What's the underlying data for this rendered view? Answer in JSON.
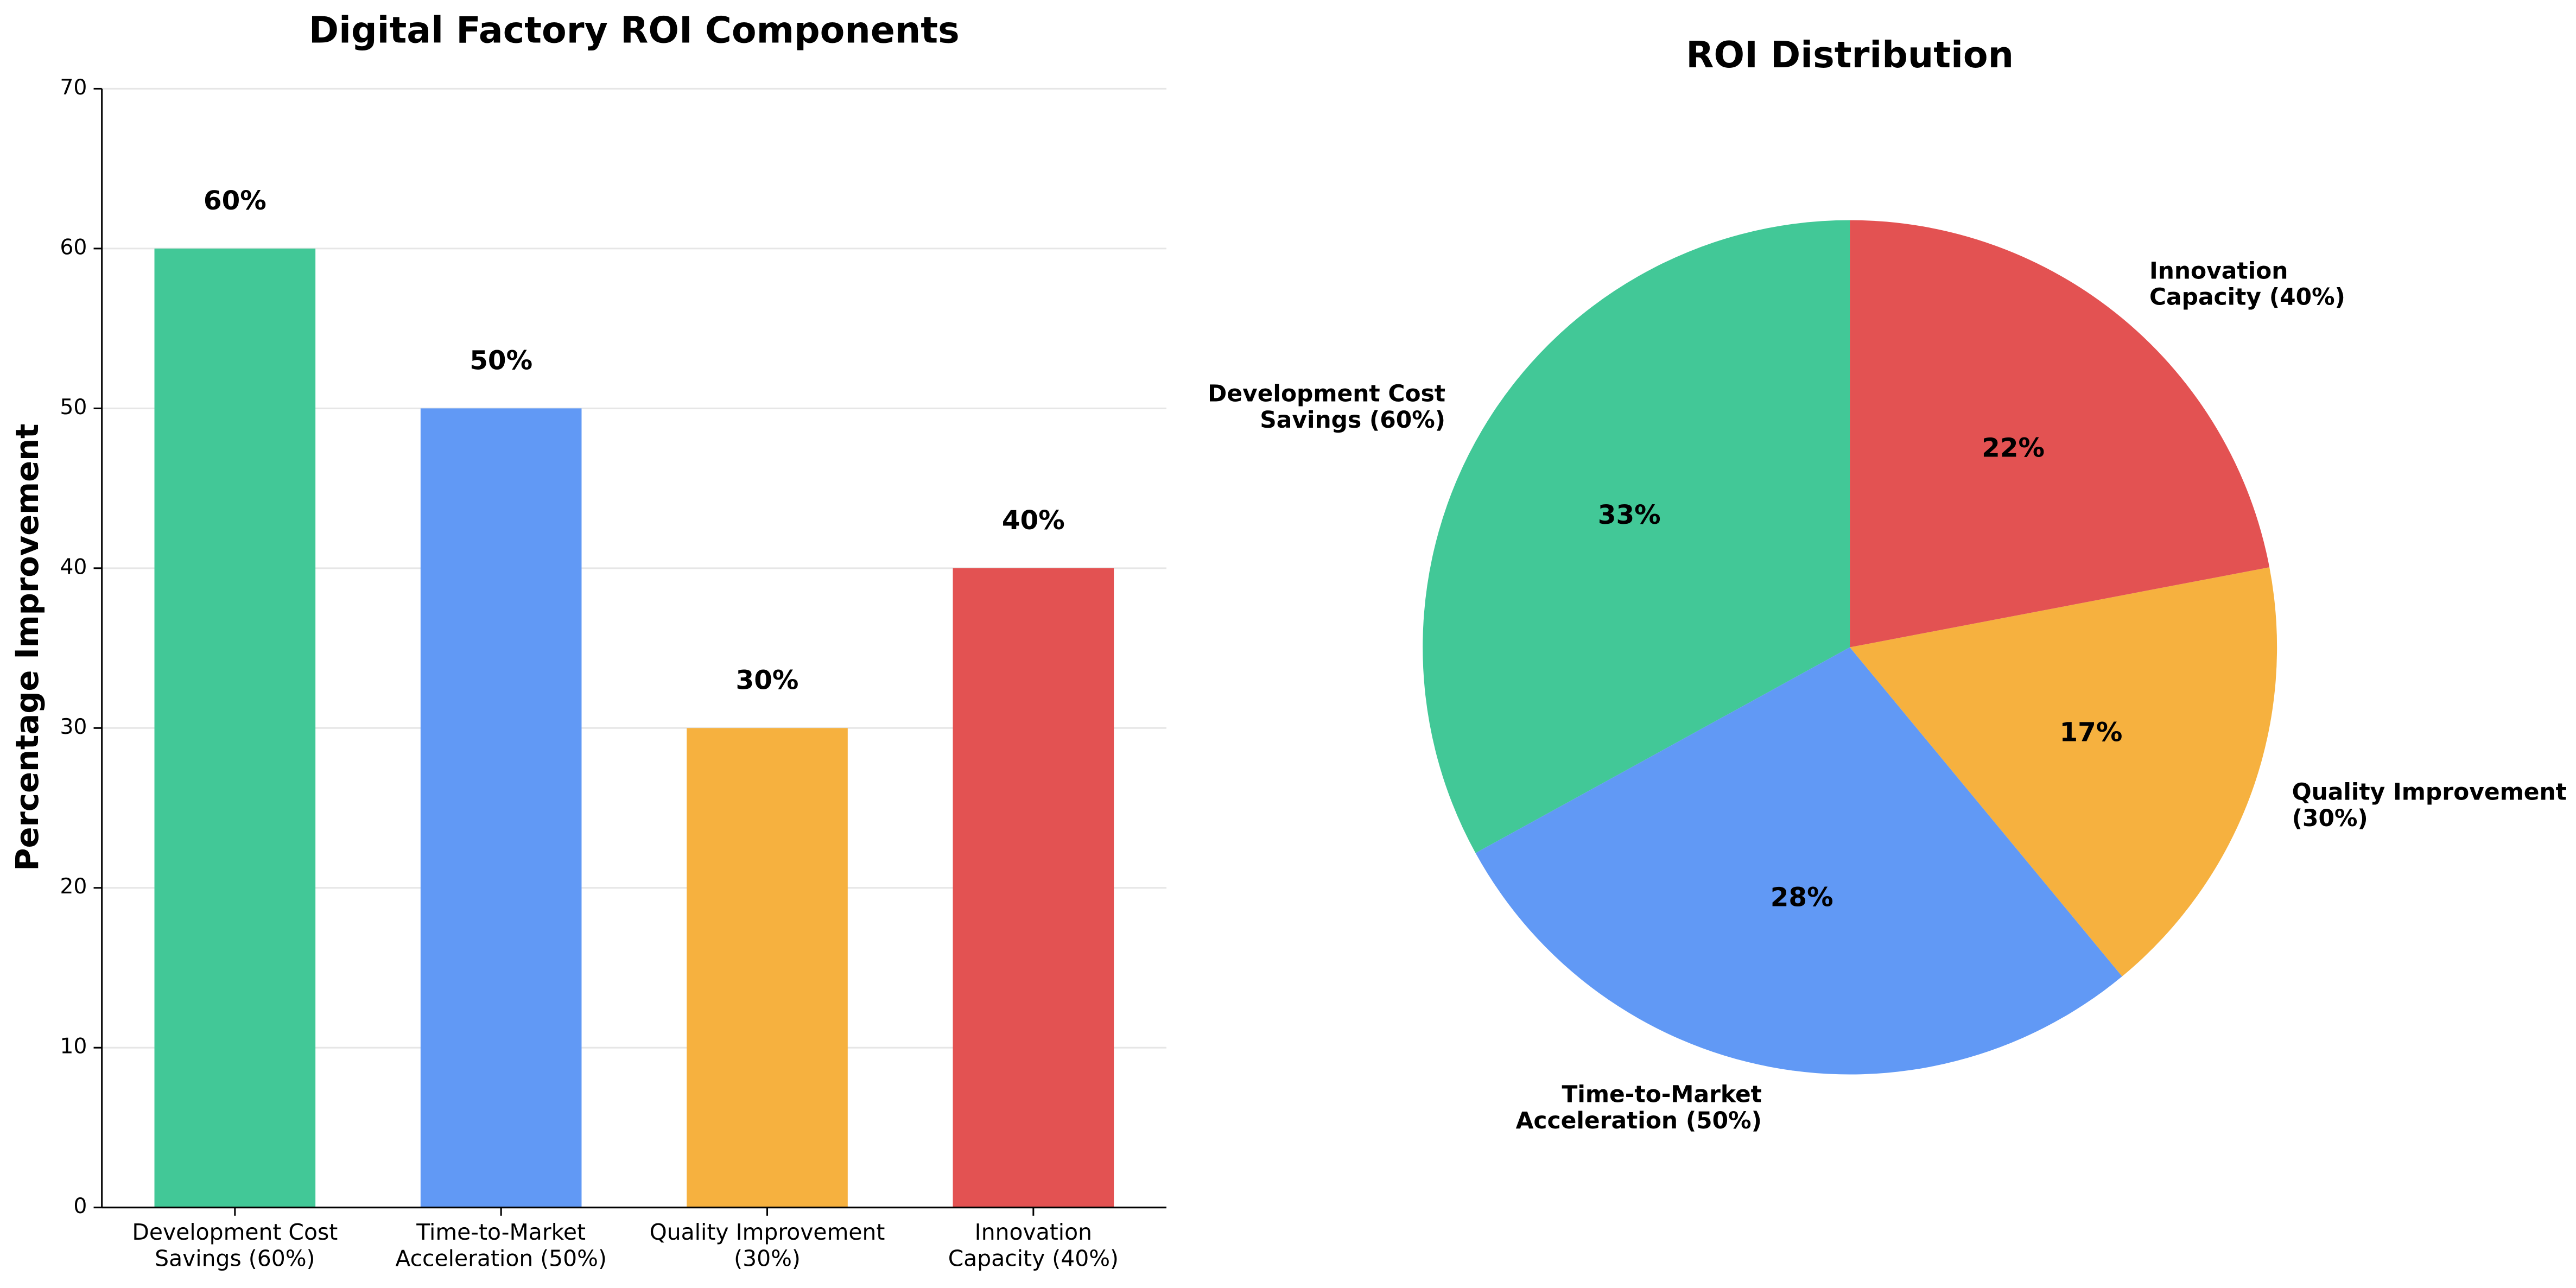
{
  "chart_data": [
    {
      "type": "bar",
      "title": "Digital Factory ROI Components",
      "y_label": "Percentage Improvement",
      "categories": [
        "Development Cost\nSavings (60%)",
        "Time-to-Market\nAcceleration (50%)",
        "Quality Improvement\n(30%)",
        "Innovation\nCapacity (40%)"
      ],
      "values": [
        60,
        50,
        30,
        40
      ],
      "value_labels": [
        "60%",
        "50%",
        "30%",
        "40%"
      ],
      "colors": [
        "#42c897",
        "#6199f5",
        "#f6b13f",
        "#e35252"
      ],
      "ylim": [
        0,
        70
      ],
      "yticks": [
        0,
        10,
        20,
        30,
        40,
        50,
        60,
        70
      ],
      "grid": true
    },
    {
      "type": "pie",
      "title": "ROI Distribution",
      "categories": [
        "Development Cost\nSavings (60%)",
        "Time-to-Market\nAcceleration (50%)",
        "Quality Improvement\n(30%)",
        "Innovation\nCapacity (40%)"
      ],
      "values": [
        33,
        28,
        17,
        22
      ],
      "value_labels": [
        "33%",
        "28%",
        "17%",
        "22%"
      ],
      "colors": [
        "#42c897",
        "#6199f5",
        "#f6b13f",
        "#e35252"
      ]
    }
  ]
}
